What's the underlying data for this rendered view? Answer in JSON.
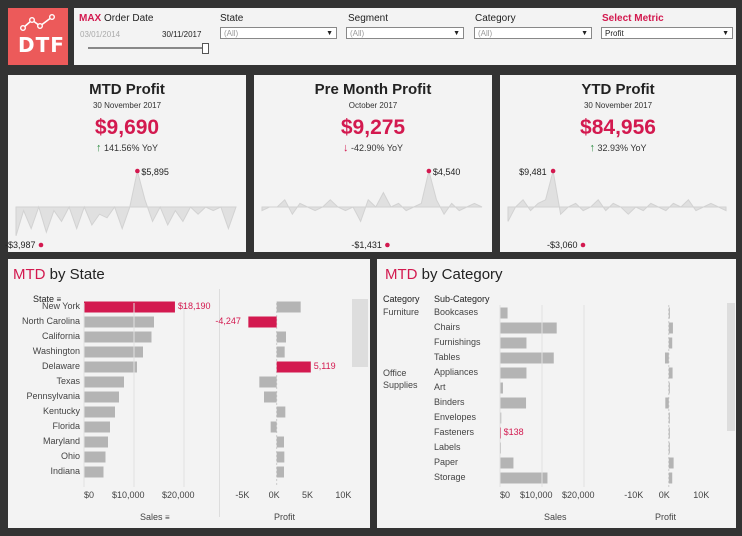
{
  "logo": {
    "text": "DTF"
  },
  "filters": {
    "date": {
      "label_prefix": "MAX",
      "label": "Order Date",
      "start": "03/01/2014",
      "end": "30/11/2017"
    },
    "state": {
      "label": "State",
      "value": "(All)"
    },
    "segment": {
      "label": "Segment",
      "value": "(All)"
    },
    "category": {
      "label": "Category",
      "value": "(All)"
    },
    "metric": {
      "label": "Select Metric",
      "value": "Profit"
    }
  },
  "kpis": [
    {
      "title": "MTD Profit",
      "date": "30 November 2017",
      "value": "$9,690",
      "yoy": "141.56% YoY",
      "dir": "up",
      "max_label": "$5,895",
      "min_label": "-$3,987"
    },
    {
      "title": "Pre Month Profit",
      "date": "October 2017",
      "value": "$9,275",
      "yoy": "-42.90% YoY",
      "dir": "down",
      "max_label": "$4,540",
      "min_label": "-$1,431"
    },
    {
      "title": "YTD Profit",
      "date": "30 November 2017",
      "value": "$84,956",
      "yoy": "32.93% YoY",
      "dir": "up",
      "max_label": "$9,481",
      "min_label": "-$3,060"
    }
  ],
  "colors": {
    "accent": "#d3194f",
    "bar": "#b4b4b4",
    "logo": "#ec5a5a"
  },
  "chart_data": [
    {
      "type": "bar",
      "title_prefix": "MTD",
      "title": "by State",
      "row_header": "State",
      "categories": [
        "New York",
        "North Carolina",
        "California",
        "Washington",
        "Delaware",
        "Texas",
        "Pennsylvania",
        "Kentucky",
        "Florida",
        "Maryland",
        "Ohio",
        "Indiana"
      ],
      "series": [
        {
          "name": "Sales",
          "values": [
            18190,
            14000,
            13500,
            11800,
            10600,
            8000,
            7000,
            6200,
            5200,
            4800,
            4300,
            3900
          ]
        },
        {
          "name": "Profit",
          "values": [
            3600,
            -4247,
            1400,
            1200,
            5119,
            -2600,
            -1900,
            1300,
            -900,
            1100,
            1150,
            1100
          ]
        }
      ],
      "highlight": [
        {
          "category": "New York",
          "series": "Sales",
          "label": "$18,190"
        },
        {
          "category": "North Carolina",
          "series": "Profit",
          "label": "-4,247"
        },
        {
          "category": "Delaware",
          "series": "Profit",
          "label": "5,119"
        }
      ],
      "sales_ticks": [
        "$0",
        "$10,000",
        "$20,000"
      ],
      "profit_ticks": [
        "-5K",
        "0K",
        "5K",
        "10K"
      ],
      "sales_range": [
        0,
        24000
      ],
      "profit_range": [
        -7000,
        11000
      ],
      "xlabel_sales": "Sales",
      "xlabel_profit": "Profit"
    },
    {
      "type": "bar",
      "title_prefix": "MTD",
      "title": "by Category",
      "col_header_1": "Category",
      "col_header_2": "Sub-Category",
      "groups": [
        {
          "name": "Furniture",
          "rows": [
            "Bookcases",
            "Chairs",
            "Furnishings",
            "Tables"
          ]
        },
        {
          "name": "Office Supplies",
          "rows": [
            "Appliances",
            "Art",
            "Binders",
            "Envelopes",
            "Fasteners",
            "Labels",
            "Paper",
            "Storage"
          ]
        }
      ],
      "sales": [
        1800,
        13500,
        6300,
        12800,
        6300,
        700,
        6200,
        300,
        138,
        200,
        3200,
        11300
      ],
      "profit": [
        300,
        1200,
        1000,
        -1100,
        1100,
        200,
        -1000,
        200,
        40,
        100,
        1400,
        1000
      ],
      "highlight": {
        "row": "Fasteners",
        "label": "$138"
      },
      "sales_ticks": [
        "$0",
        "$10,000",
        "$20,000"
      ],
      "profit_ticks": [
        "-10K",
        "0K",
        "10K"
      ],
      "sales_range": [
        0,
        25000
      ],
      "profit_range": [
        -15000,
        16000
      ],
      "xlabel_sales": "Sales",
      "xlabel_profit": "Profit"
    }
  ]
}
